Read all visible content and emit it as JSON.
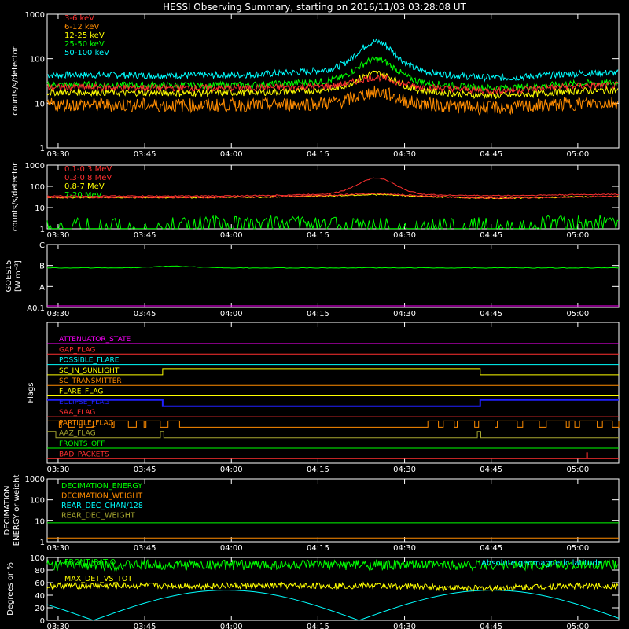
{
  "title": "HESSI Observing Summary, starting on 2016/11/03 03:28:08 UT",
  "time_ticks": [
    "03:30",
    "03:45",
    "04:00",
    "04:15",
    "04:30",
    "04:45",
    "05:00"
  ],
  "colors": {
    "red": "#ff3030",
    "orange": "#ff8c00",
    "yellow": "#ffff00",
    "green": "#00ff00",
    "cyan": "#00ffff",
    "magenta": "#ff00ff",
    "blue": "#2020ff",
    "olive": "#a8a830",
    "white": "#ffffff"
  },
  "chart_data": [
    {
      "type": "line",
      "ylabel": "counts/s/detector",
      "yscale": "log",
      "ylim": [
        1,
        1000
      ],
      "yticks": [
        "1",
        "10",
        "100",
        "1000"
      ],
      "series": [
        {
          "name": "3-6 keV",
          "color": "#ff3030",
          "base": 22,
          "peak": 37
        },
        {
          "name": "6-12 keV",
          "color": "#ff8c00",
          "base": 9,
          "peak": 17
        },
        {
          "name": "12-25 keV",
          "color": "#ffff00",
          "base": 17,
          "peak": 45
        },
        {
          "name": "25-50 keV",
          "color": "#00ff00",
          "base": 25,
          "peak": 90
        },
        {
          "name": "50-100 keV",
          "color": "#00ffff",
          "base": 42,
          "peak": 220
        }
      ]
    },
    {
      "type": "line",
      "ylabel": "counts/s/detector",
      "yscale": "log",
      "ylim": [
        1,
        1000
      ],
      "yticks": [
        "1",
        "10",
        "100",
        "1000"
      ],
      "series": [
        {
          "name": "0.1-0.3 MeV",
          "color": "#ff3030",
          "base": 35,
          "peak": 230
        },
        {
          "name": "0.3-0.8 MeV",
          "color": "#ff3030",
          "base": 30,
          "peak": 60
        },
        {
          "name": "0.8-7 MeV",
          "color": "#ffff00",
          "base": 30,
          "peak": 50
        },
        {
          "name": "7-20 MeV",
          "color": "#00ff00",
          "base": 1.2,
          "peak": 3
        }
      ]
    },
    {
      "type": "line",
      "ylabel": "GOES15",
      "ylabel2": "[W m⁻²]",
      "yticks": [
        "A0.1",
        "A",
        "B",
        "C"
      ],
      "series": [
        {
          "name": "GOES15",
          "color": "#00ff00",
          "level": "B"
        }
      ]
    },
    {
      "type": "line",
      "ylabel": "Flags",
      "flags": [
        {
          "name": "ATTENUATOR_STATE",
          "color": "#ff00ff"
        },
        {
          "name": "GAP_FLAG",
          "color": "#ff3030"
        },
        {
          "name": "POSSIBLE_FLARE",
          "color": "#00ffff"
        },
        {
          "name": "SC_IN_SUNLIGHT",
          "color": "#ffff00"
        },
        {
          "name": "SC_TRANSMITTER",
          "color": "#ff8c00"
        },
        {
          "name": "FLARE_FLAG",
          "color": "#ffff00"
        },
        {
          "name": "ECLIPSE_FLAG",
          "color": "#2020ff"
        },
        {
          "name": "SAA_FLAG",
          "color": "#ff3030"
        },
        {
          "name": "PARTICLE_FLAG",
          "color": "#ff8c00"
        },
        {
          "name": "AAZ_FLAG",
          "color": "#a8a830"
        },
        {
          "name": "FRONTS_OFF",
          "color": "#00ff00"
        },
        {
          "name": "BAD_PACKETS",
          "color": "#ff3030"
        }
      ]
    },
    {
      "type": "line",
      "ylabel": "DECIMATION",
      "ylabel2": "ENERGY or weight",
      "yscale": "log",
      "ylim": [
        1,
        1000
      ],
      "yticks": [
        "1",
        "10",
        "100",
        "1000"
      ],
      "series": [
        {
          "name": "DECIMATION_ENERGY",
          "color": "#00ff00",
          "value": 8
        },
        {
          "name": "DECIMATION_WEIGHT",
          "color": "#ff8c00",
          "value": 1.5
        },
        {
          "name": "REAR_DEC_CHAN/128",
          "color": "#00ffff",
          "value": null
        },
        {
          "name": "REAR_DEC_WEIGHT",
          "color": "#a8a830",
          "value": null
        }
      ]
    },
    {
      "type": "line",
      "ylabel": "Degrees or %",
      "ylim": [
        0,
        100
      ],
      "yticks": [
        "0",
        "20",
        "40",
        "60",
        "80",
        "100"
      ],
      "annotation": "Absolute geomagnetic latitude",
      "series": [
        {
          "name": "FRONT_RATIO",
          "color": "#00ff00",
          "value": 88
        },
        {
          "name": "MAX_DET_VS_TOT",
          "color": "#ffff00",
          "value": 55
        },
        {
          "name": "Absolute geomagnetic latitude",
          "color": "#00ffff"
        }
      ]
    }
  ]
}
